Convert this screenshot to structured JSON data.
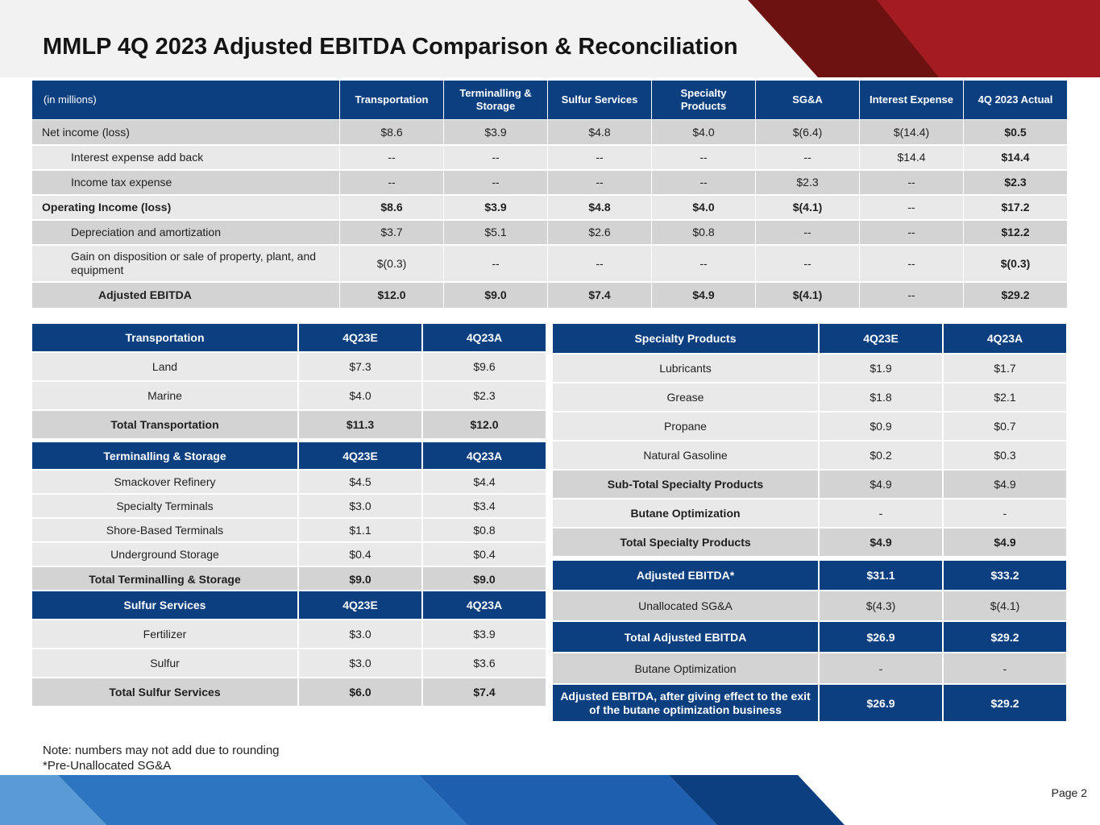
{
  "title": "MMLP 4Q 2023 Adjusted EBITDA Comparison & Reconciliation",
  "colors": {
    "navy": "#0b3f80",
    "dark_red": "#6e1111",
    "red": "#a31c22",
    "blue": "#1e5fb0",
    "light_blue": "#5b9bd5"
  },
  "main_table": {
    "headers": [
      "(in millions)",
      "Transportation",
      "Terminalling & Storage",
      "Sulfur Services",
      "Specialty Products",
      "SG&A",
      "Interest Expense",
      "4Q 2023 Actual"
    ],
    "rows": [
      {
        "label": "Net income (loss)",
        "values": [
          "$8.6",
          "$3.9",
          "$4.8",
          "$4.0",
          "$(6.4)",
          "$(14.4)",
          "$0.5"
        ]
      },
      {
        "label": "Interest expense add back",
        "values": [
          "--",
          "--",
          "--",
          "--",
          "--",
          "$14.4",
          "$14.4"
        ]
      },
      {
        "label": "Income tax expense",
        "values": [
          "--",
          "--",
          "--",
          "--",
          "$2.3",
          "--",
          "$2.3"
        ]
      },
      {
        "label": "Operating Income (loss)",
        "values": [
          "$8.6",
          "$3.9",
          "$4.8",
          "$4.0",
          "$(4.1)",
          "--",
          "$17.2"
        ]
      },
      {
        "label": "Depreciation and amortization",
        "values": [
          "$3.7",
          "$5.1",
          "$2.6",
          "$0.8",
          "--",
          "--",
          "$12.2"
        ]
      },
      {
        "label": "Gain on disposition or sale of property, plant, and equipment",
        "values": [
          "$(0.3)",
          "--",
          "--",
          "--",
          "--",
          "--",
          "$(0.3)"
        ]
      },
      {
        "label": "Adjusted EBITDA",
        "values": [
          "$12.0",
          "$9.0",
          "$7.4",
          "$4.9",
          "$(4.1)",
          "--",
          "$29.2"
        ]
      }
    ]
  },
  "transportation": {
    "headers": [
      "Transportation",
      "4Q23E",
      "4Q23A"
    ],
    "rows": [
      {
        "label": "Land",
        "e": "$7.3",
        "a": "$9.6"
      },
      {
        "label": "Marine",
        "e": "$4.0",
        "a": "$2.3"
      }
    ],
    "total": {
      "label": "Total Transportation",
      "e": "$11.3",
      "a": "$12.0"
    }
  },
  "terminalling": {
    "headers": [
      "Terminalling & Storage",
      "4Q23E",
      "4Q23A"
    ],
    "rows": [
      {
        "label": "Smackover Refinery",
        "e": "$4.5",
        "a": "$4.4"
      },
      {
        "label": "Specialty Terminals",
        "e": "$3.0",
        "a": "$3.4"
      },
      {
        "label": "Shore-Based Terminals",
        "e": "$1.1",
        "a": "$0.8"
      },
      {
        "label": "Underground Storage",
        "e": "$0.4",
        "a": "$0.4"
      }
    ],
    "total": {
      "label": "Total Terminalling & Storage",
      "e": "$9.0",
      "a": "$9.0"
    }
  },
  "sulfur": {
    "headers": [
      "Sulfur Services",
      "4Q23E",
      "4Q23A"
    ],
    "rows": [
      {
        "label": "Fertilizer",
        "e": "$3.0",
        "a": "$3.9"
      },
      {
        "label": "Sulfur",
        "e": "$3.0",
        "a": "$3.6"
      }
    ],
    "total": {
      "label": "Total Sulfur Services",
      "e": "$6.0",
      "a": "$7.4"
    }
  },
  "specialty": {
    "headers": [
      "Specialty Products",
      "4Q23E",
      "4Q23A"
    ],
    "rows": [
      {
        "label": "Lubricants",
        "e": "$1.9",
        "a": "$1.7"
      },
      {
        "label": "Grease",
        "e": "$1.8",
        "a": "$2.1"
      },
      {
        "label": "Propane",
        "e": "$0.9",
        "a": "$0.7"
      },
      {
        "label": "Natural Gasoline",
        "e": "$0.2",
        "a": "$0.3"
      }
    ],
    "subtotal": {
      "label": "Sub-Total Specialty Products",
      "e": "$4.9",
      "a": "$4.9"
    },
    "butane": {
      "label": "Butane Optimization",
      "e": "-",
      "a": "-"
    },
    "total": {
      "label": "Total Specialty Products",
      "e": "$4.9",
      "a": "$4.9"
    }
  },
  "summary": {
    "adjusted_ebitda": {
      "label": "Adjusted EBITDA*",
      "e": "$31.1",
      "a": "$33.2"
    },
    "unallocated": {
      "label": "Unallocated SG&A",
      "e": "$(4.3)",
      "a": "$(4.1)"
    },
    "total_adjusted": {
      "label": "Total Adjusted EBITDA",
      "e": "$26.9",
      "a": "$29.2"
    },
    "butane": {
      "label": "Butane Optimization",
      "e": "-",
      "a": "-"
    },
    "after_exit": {
      "label": "Adjusted EBITDA, after giving effect to the exit of the butane optimization business",
      "e": "$26.9",
      "a": "$29.2"
    }
  },
  "notes": {
    "line1": "Note: numbers may not add due to rounding",
    "line2": "*Pre-Unallocated SG&A"
  },
  "page_label": "Page 2"
}
